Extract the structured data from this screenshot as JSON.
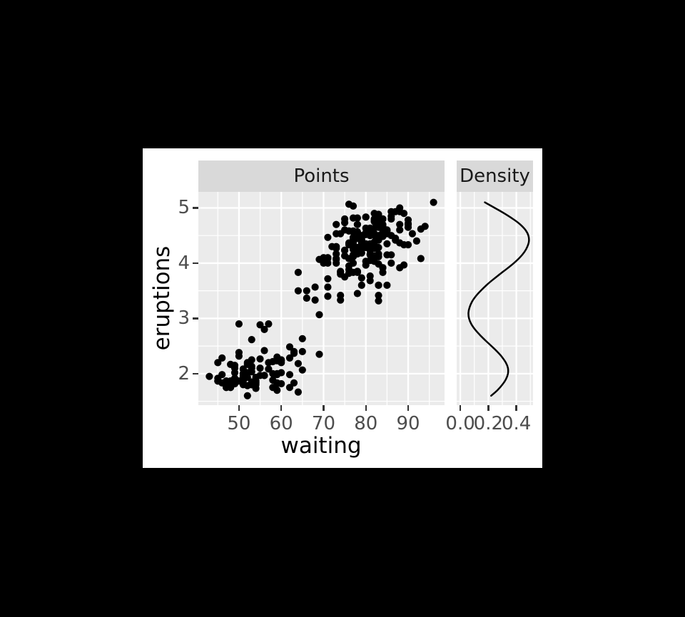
{
  "style": {
    "page_bg": "#000000",
    "figure_bg": "#ffffff",
    "panel_bg": "#ebebeb",
    "strip_bg": "#d9d9d9",
    "strip_text": "#1a1a1a",
    "grid": "#ffffff",
    "axis_text": "#4d4d4d",
    "axis_title": "#000000",
    "tick_mark": "#333333",
    "point": "#000000",
    "line": "#000000"
  },
  "chart_data": [
    {
      "type": "scatter",
      "facet_label": "Points",
      "xlabel": "waiting",
      "ylabel": "eruptions",
      "grid": "on",
      "xlim": [
        40.4,
        98.6
      ],
      "ylim": [
        1.43,
        5.29
      ],
      "x_tick_values": [
        50,
        60,
        70,
        80,
        90
      ],
      "x_tick_labels": [
        "50",
        "60",
        "70",
        "80",
        "90"
      ],
      "x_minor": [
        45,
        55,
        65,
        75,
        85,
        95
      ],
      "y_tick_values": [
        2,
        3,
        4,
        5
      ],
      "y_tick_labels": [
        "2",
        "3",
        "4",
        "5"
      ],
      "y_minor": [
        1.5,
        2.5,
        3.5,
        4.5
      ],
      "points_format": "[waiting, eruptions]",
      "points": [
        [
          79,
          3.6
        ],
        [
          54,
          1.8
        ],
        [
          74,
          3.333
        ],
        [
          62,
          2.283
        ],
        [
          85,
          4.533
        ],
        [
          55,
          2.883
        ],
        [
          88,
          4.7
        ],
        [
          85,
          3.6
        ],
        [
          51,
          1.95
        ],
        [
          85,
          4.35
        ],
        [
          54,
          1.833
        ],
        [
          84,
          3.917
        ],
        [
          78,
          4.2
        ],
        [
          47,
          1.75
        ],
        [
          83,
          4.7
        ],
        [
          52,
          2.167
        ],
        [
          62,
          1.75
        ],
        [
          84,
          4.8
        ],
        [
          52,
          1.6
        ],
        [
          79,
          4.25
        ],
        [
          51,
          1.8
        ],
        [
          47,
          1.75
        ],
        [
          78,
          3.45
        ],
        [
          69,
          3.067
        ],
        [
          74,
          4.533
        ],
        [
          83,
          3.6
        ],
        [
          55,
          1.967
        ],
        [
          76,
          4.083
        ],
        [
          78,
          3.85
        ],
        [
          79,
          4.433
        ],
        [
          73,
          4.3
        ],
        [
          77,
          4.467
        ],
        [
          66,
          3.367
        ],
        [
          80,
          4.033
        ],
        [
          74,
          3.833
        ],
        [
          52,
          2.017
        ],
        [
          48,
          1.867
        ],
        [
          80,
          4.833
        ],
        [
          59,
          1.833
        ],
        [
          90,
          4.783
        ],
        [
          80,
          4.35
        ],
        [
          58,
          1.883
        ],
        [
          84,
          4.567
        ],
        [
          58,
          1.75
        ],
        [
          73,
          4.533
        ],
        [
          83,
          3.317
        ],
        [
          64,
          3.833
        ],
        [
          53,
          2.1
        ],
        [
          82,
          4.633
        ],
        [
          59,
          2.0
        ],
        [
          75,
          4.8
        ],
        [
          90,
          4.716
        ],
        [
          54,
          1.833
        ],
        [
          80,
          4.833
        ],
        [
          54,
          1.733
        ],
        [
          83,
          4.883
        ],
        [
          71,
          3.717
        ],
        [
          64,
          1.667
        ],
        [
          77,
          4.567
        ],
        [
          81,
          4.317
        ],
        [
          59,
          2.233
        ],
        [
          84,
          4.5
        ],
        [
          48,
          1.75
        ],
        [
          82,
          4.8
        ],
        [
          60,
          1.817
        ],
        [
          92,
          4.4
        ],
        [
          78,
          4.167
        ],
        [
          78,
          4.7
        ],
        [
          65,
          2.067
        ],
        [
          73,
          4.7
        ],
        [
          82,
          4.033
        ],
        [
          56,
          1.967
        ],
        [
          79,
          4.5
        ],
        [
          71,
          4.0
        ],
        [
          62,
          1.983
        ],
        [
          76,
          5.067
        ],
        [
          60,
          2.017
        ],
        [
          78,
          4.567
        ],
        [
          76,
          3.883
        ],
        [
          83,
          3.6
        ],
        [
          75,
          4.133
        ],
        [
          82,
          4.333
        ],
        [
          70,
          4.1
        ],
        [
          65,
          2.633
        ],
        [
          73,
          4.067
        ],
        [
          88,
          4.933
        ],
        [
          76,
          3.95
        ],
        [
          80,
          4.517
        ],
        [
          48,
          2.167
        ],
        [
          86,
          4.0
        ],
        [
          60,
          2.2
        ],
        [
          90,
          4.333
        ],
        [
          50,
          1.867
        ],
        [
          78,
          4.817
        ],
        [
          63,
          1.833
        ],
        [
          72,
          4.3
        ],
        [
          84,
          4.667
        ],
        [
          75,
          3.75
        ],
        [
          51,
          1.867
        ],
        [
          82,
          4.9
        ],
        [
          62,
          2.483
        ],
        [
          88,
          4.367
        ],
        [
          49,
          2.1
        ],
        [
          83,
          4.5
        ],
        [
          81,
          4.05
        ],
        [
          47,
          1.867
        ],
        [
          84,
          4.7
        ],
        [
          52,
          1.783
        ],
        [
          86,
          4.85
        ],
        [
          81,
          3.683
        ],
        [
          75,
          4.733
        ],
        [
          59,
          2.3
        ],
        [
          89,
          4.9
        ],
        [
          79,
          4.417
        ],
        [
          59,
          1.7
        ],
        [
          81,
          4.633
        ],
        [
          50,
          2.317
        ],
        [
          85,
          4.6
        ],
        [
          59,
          1.817
        ],
        [
          87,
          4.417
        ],
        [
          53,
          2.617
        ],
        [
          69,
          4.067
        ],
        [
          77,
          4.25
        ],
        [
          56,
          1.967
        ],
        [
          88,
          4.6
        ],
        [
          81,
          3.767
        ],
        [
          45,
          1.917
        ],
        [
          82,
          4.5
        ],
        [
          55,
          2.267
        ],
        [
          90,
          4.65
        ],
        [
          45,
          1.867
        ],
        [
          83,
          4.167
        ],
        [
          56,
          2.8
        ],
        [
          89,
          4.333
        ],
        [
          46,
          1.833
        ],
        [
          82,
          4.383
        ],
        [
          51,
          1.883
        ],
        [
          86,
          4.933
        ],
        [
          53,
          2.033
        ],
        [
          79,
          3.733
        ],
        [
          81,
          4.233
        ],
        [
          60,
          2.233
        ],
        [
          82,
          4.533
        ],
        [
          77,
          4.817
        ],
        [
          76,
          4.333
        ],
        [
          59,
          1.983
        ],
        [
          80,
          4.633
        ],
        [
          49,
          2.017
        ],
        [
          96,
          5.1
        ],
        [
          53,
          1.8
        ],
        [
          77,
          5.033
        ],
        [
          77,
          4.0
        ],
        [
          65,
          2.4
        ],
        [
          81,
          4.6
        ],
        [
          71,
          3.567
        ],
        [
          70,
          4.0
        ],
        [
          81,
          4.5
        ],
        [
          93,
          4.083
        ],
        [
          53,
          1.8
        ],
        [
          89,
          3.967
        ],
        [
          45,
          2.2
        ],
        [
          86,
          4.15
        ],
        [
          58,
          2.0
        ],
        [
          78,
          3.833
        ],
        [
          66,
          3.5
        ],
        [
          76,
          4.583
        ],
        [
          63,
          2.367
        ],
        [
          88,
          5.0
        ],
        [
          52,
          1.933
        ],
        [
          93,
          4.617
        ],
        [
          49,
          1.917
        ],
        [
          57,
          2.083
        ],
        [
          77,
          4.583
        ],
        [
          68,
          3.333
        ],
        [
          81,
          4.167
        ],
        [
          81,
          4.333
        ],
        [
          73,
          4.167
        ],
        [
          50,
          2.9
        ],
        [
          85,
          4.583
        ],
        [
          74,
          3.85
        ],
        [
          71,
          3.4
        ],
        [
          77,
          4.45
        ],
        [
          83,
          4.283
        ],
        [
          83,
          3.417
        ],
        [
          74,
          3.8
        ],
        [
          78,
          4.7
        ],
        [
          52,
          2.2
        ],
        [
          83,
          4.65
        ],
        [
          84,
          4.5
        ],
        [
          46,
          2.283
        ],
        [
          83,
          3.983
        ],
        [
          81,
          4.15
        ],
        [
          69,
          2.35
        ],
        [
          87,
          4.933
        ],
        [
          57,
          2.9
        ],
        [
          76,
          4.583
        ],
        [
          84,
          3.833
        ],
        [
          51,
          2.083
        ],
        [
          77,
          4.367
        ],
        [
          53,
          2.133
        ],
        [
          81,
          4.35
        ],
        [
          57,
          2.2
        ],
        [
          87,
          4.45
        ],
        [
          68,
          3.567
        ],
        [
          81,
          4.5
        ],
        [
          77,
          4.15
        ],
        [
          76,
          3.817
        ],
        [
          84,
          3.917
        ],
        [
          78,
          4.45
        ],
        [
          51,
          2.0
        ],
        [
          78,
          4.283
        ],
        [
          82,
          4.767
        ],
        [
          91,
          4.533
        ],
        [
          53,
          1.85
        ],
        [
          78,
          4.25
        ],
        [
          46,
          1.983
        ],
        [
          60,
          2.25
        ],
        [
          82,
          4.75
        ],
        [
          77,
          4.117
        ],
        [
          49,
          2.15
        ],
        [
          83,
          4.417
        ],
        [
          49,
          1.817
        ],
        [
          71,
          4.467
        ],
        [
          64,
          2.183
        ],
        [
          84,
          4.8
        ],
        [
          49,
          1.833
        ],
        [
          83,
          4.8
        ],
        [
          71,
          4.1
        ],
        [
          80,
          3.966
        ],
        [
          75,
          4.233
        ],
        [
          64,
          3.5
        ],
        [
          76,
          4.366
        ],
        [
          53,
          2.25
        ],
        [
          94,
          4.667
        ],
        [
          55,
          2.1
        ],
        [
          76,
          4.35
        ],
        [
          82,
          4.133
        ],
        [
          54,
          1.867
        ],
        [
          75,
          4.6
        ],
        [
          47,
          1.783
        ],
        [
          79,
          4.367
        ],
        [
          78,
          3.85
        ],
        [
          54,
          1.933
        ],
        [
          86,
          4.5
        ],
        [
          50,
          2.383
        ],
        [
          90,
          4.7
        ],
        [
          54,
          1.867
        ],
        [
          77,
          3.833
        ],
        [
          74,
          3.417
        ],
        [
          75,
          4.233
        ],
        [
          63,
          2.4
        ],
        [
          86,
          4.8
        ],
        [
          51,
          2.0
        ],
        [
          85,
          4.15
        ],
        [
          45,
          1.867
        ],
        [
          82,
          4.267
        ],
        [
          48,
          1.75
        ],
        [
          84,
          4.483
        ],
        [
          73,
          4.0
        ],
        [
          83,
          4.117
        ],
        [
          73,
          4.083
        ],
        [
          73,
          4.267
        ],
        [
          88,
          3.917
        ],
        [
          80,
          4.55
        ],
        [
          71,
          4.083
        ],
        [
          56,
          2.417
        ],
        [
          79,
          4.183
        ],
        [
          58,
          2.217
        ],
        [
          78,
          4.45
        ],
        [
          43,
          1.95
        ],
        [
          49,
          1.85
        ],
        [
          80,
          4.283
        ]
      ]
    },
    {
      "type": "line",
      "facet_label": "Density",
      "grid": "on",
      "xlim": [
        -0.026,
        0.519
      ],
      "ylim": [
        1.43,
        5.29
      ],
      "x_tick_values": [
        0.0,
        0.2,
        0.4
      ],
      "x_tick_labels": [
        "0.0",
        "0.2",
        "0.4"
      ],
      "x_minor": [
        0.1,
        0.3,
        0.5
      ],
      "y_tick_values": [
        2,
        3,
        4,
        5
      ],
      "y_minor": [
        1.5,
        2.5,
        3.5,
        4.5
      ],
      "curve_format": "[eruptions, density]",
      "curve": [
        [
          1.6,
          0.22
        ],
        [
          1.7,
          0.265
        ],
        [
          1.8,
          0.3
        ],
        [
          1.9,
          0.326
        ],
        [
          2.0,
          0.34
        ],
        [
          2.1,
          0.34
        ],
        [
          2.2,
          0.325
        ],
        [
          2.3,
          0.298
        ],
        [
          2.4,
          0.263
        ],
        [
          2.5,
          0.222
        ],
        [
          2.6,
          0.18
        ],
        [
          2.7,
          0.14
        ],
        [
          2.8,
          0.105
        ],
        [
          2.9,
          0.078
        ],
        [
          3.0,
          0.062
        ],
        [
          3.1,
          0.058
        ],
        [
          3.2,
          0.066
        ],
        [
          3.3,
          0.083
        ],
        [
          3.4,
          0.11
        ],
        [
          3.5,
          0.145
        ],
        [
          3.6,
          0.186
        ],
        [
          3.7,
          0.232
        ],
        [
          3.8,
          0.282
        ],
        [
          3.9,
          0.333
        ],
        [
          4.0,
          0.382
        ],
        [
          4.1,
          0.424
        ],
        [
          4.2,
          0.457
        ],
        [
          4.3,
          0.479
        ],
        [
          4.4,
          0.49
        ],
        [
          4.5,
          0.486
        ],
        [
          4.6,
          0.465
        ],
        [
          4.7,
          0.428
        ],
        [
          4.8,
          0.376
        ],
        [
          4.9,
          0.314
        ],
        [
          5.0,
          0.246
        ],
        [
          5.1,
          0.175
        ]
      ]
    }
  ]
}
